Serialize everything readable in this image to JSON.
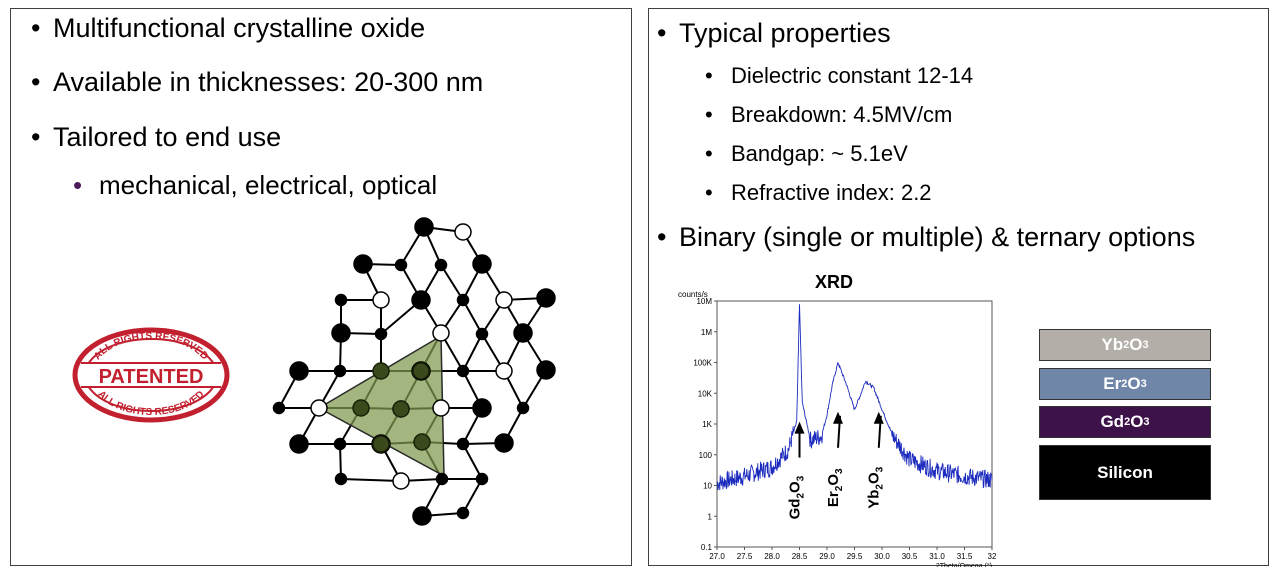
{
  "left": {
    "bullets": [
      "Multifunctional crystalline oxide",
      "Available in thicknesses:  20-300 nm",
      "Tailored to end use"
    ],
    "sub_bullet": "mechanical, electrical, optical",
    "stamp": {
      "top_text": "ALL RIGHTS RESERVED",
      "main_text": "PATENTED",
      "bottom_text": "ALL RIGHTS RESERVED"
    }
  },
  "right": {
    "heading_bullet": "Typical properties",
    "properties": [
      "Dielectric constant 12-14",
      "Breakdown: 4.5MV/cm",
      "Bandgap: ~ 5.1eV",
      "Refractive index: 2.2"
    ],
    "options_bullet": "Binary (single or multiple) & ternary options"
  },
  "chart_data": {
    "type": "line",
    "title": "XRD",
    "ylabel": "counts/s",
    "xlabel": "2Theta/Omega (°)",
    "x_ticks": [
      "27.0",
      "27.5",
      "28.0",
      "28.5",
      "29.0",
      "29.5",
      "30.0",
      "30.5",
      "31.0",
      "31.5",
      "32"
    ],
    "y_ticks": [
      "10M",
      "1M",
      "100K",
      "10K",
      "1K",
      "100",
      "10",
      "1",
      "0.1"
    ],
    "xlim": [
      27.0,
      32.0
    ],
    "yscale": "log",
    "ylim": [
      0.1,
      10000000
    ],
    "series": [
      {
        "x": [
          27.0,
          27.5,
          28.0,
          28.3,
          28.45,
          28.5,
          28.55,
          28.7,
          28.9,
          29.0,
          29.1,
          29.2,
          29.35,
          29.5,
          29.6,
          29.7,
          29.85,
          30.0,
          30.2,
          30.5,
          31.0,
          31.5,
          32.0
        ],
        "y": [
          12,
          20,
          40,
          150,
          1200,
          8000000,
          5000,
          300,
          400,
          2000,
          20000,
          100000,
          20000,
          3000,
          8000,
          25000,
          15000,
          3000,
          400,
          70,
          30,
          20,
          15
        ]
      }
    ],
    "annotations": [
      {
        "label": "Gd2O3",
        "x": 28.5
      },
      {
        "label": "Er2O3",
        "x": 29.2
      },
      {
        "label": "Yb2O3",
        "x": 29.85
      }
    ]
  },
  "layer_stack": {
    "layers": [
      {
        "name": "Yb2O3",
        "base": "Yb",
        "s1": "2",
        "mid": "O",
        "s2": "3",
        "color": "#b3aea8"
      },
      {
        "name": "Er2O3",
        "base": "Er",
        "s1": "2",
        "mid": "O",
        "s2": "3",
        "color": "#6f86a8"
      },
      {
        "name": "Gd2O3",
        "base": "Gd",
        "s1": "2",
        "mid": "O",
        "s2": "3",
        "color": "#3d1248"
      },
      {
        "name": "Silicon",
        "text": "Silicon",
        "color": "#000000"
      }
    ]
  }
}
